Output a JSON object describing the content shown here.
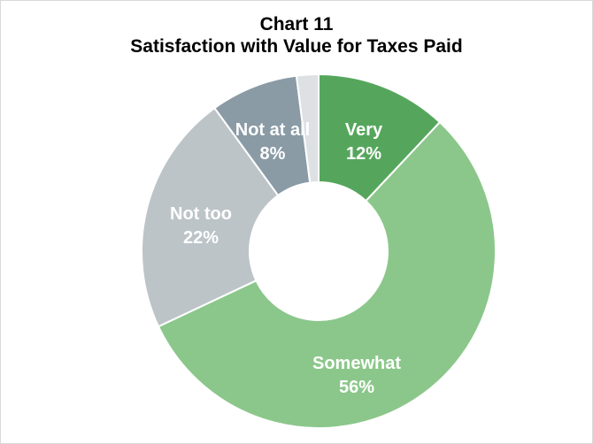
{
  "chart_data": {
    "type": "pie",
    "title": "Chart 11",
    "subtitle": "Satisfaction with Value for Taxes Paid",
    "donut": true,
    "start_angle_deg": 0,
    "direction": "clockwise",
    "slices": [
      {
        "label": "Very",
        "value": 12,
        "value_label": "12%",
        "color": "#55a65c",
        "text_color": "#ffffff"
      },
      {
        "label": "Somewhat",
        "value": 56,
        "value_label": "56%",
        "color": "#8bc78a",
        "text_color": "#ffffff"
      },
      {
        "label": "Not too",
        "value": 22,
        "value_label": "22%",
        "color": "#bcc4c8",
        "text_color": "#ffffff"
      },
      {
        "label": "Not at all",
        "value": 8,
        "value_label": "8%",
        "color": "#8a9ba6",
        "text_color": "#ffffff"
      },
      {
        "label": "",
        "value": 2,
        "value_label": "",
        "color": "#dde1e3",
        "text_color": "#ffffff"
      }
    ]
  }
}
